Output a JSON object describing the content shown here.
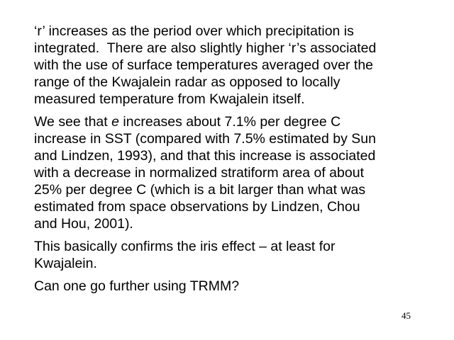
{
  "paragraphs": [
    {
      "lines": [
        "‘r’ increases as the period over which precipitation is",
        "integrated.  There are also slightly higher ‘r’s associated",
        "with the use of surface temperatures averaged over the",
        "range of the Kwajalein radar as opposed to locally",
        "measured temperature from Kwajalein itself."
      ]
    },
    {
      "lines": [
        [
          "We see that ",
          "e",
          " increases about 7.1% per degree C"
        ],
        "increase in SST (compared with 7.5% estimated by Sun",
        "and Lindzen, 1993), and that this increase is associated",
        "with a decrease in normalized stratiform area of about",
        "25% per degree C (which is a bit larger than what was",
        "estimated from space observations by Lindzen, Chou",
        "and Hou, 2001)."
      ]
    },
    {
      "lines": [
        "This basically confirms the iris effect – at least for",
        "Kwajalein."
      ]
    },
    {
      "lines": [
        "Can one go further using TRMM?"
      ]
    }
  ],
  "page_number": "45"
}
